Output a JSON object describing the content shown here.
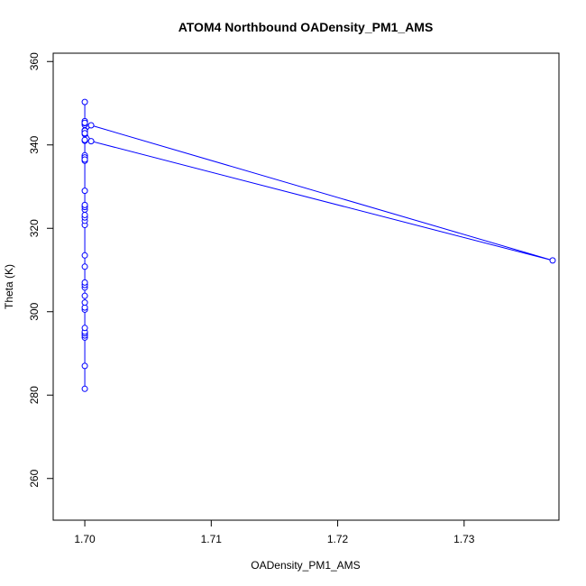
{
  "chart_data": {
    "type": "line",
    "title": "ATOM4 Northbound OADensity_PM1_AMS",
    "xlabel": "OADensity_PM1_AMS",
    "ylabel": "Theta (K)",
    "xlim": [
      1.6975,
      1.7375
    ],
    "ylim": [
      250,
      362
    ],
    "xticks": [
      "1.70",
      "1.71",
      "1.72",
      "1.73"
    ],
    "yticks": [
      "260",
      "280",
      "300",
      "320",
      "340",
      "360"
    ],
    "series_color": "#0000ff",
    "grid": false,
    "series": [
      {
        "x": [
          1.7,
          1.7,
          1.7,
          1.7,
          1.7,
          1.7,
          1.7,
          1.7,
          1.7,
          1.7,
          1.7,
          1.7,
          1.7,
          1.7,
          1.7,
          1.7,
          1.7,
          1.7,
          1.7,
          1.7,
          1.7,
          1.7,
          1.7,
          1.7,
          1.7,
          1.7,
          1.7,
          1.7,
          1.7,
          1.7,
          1.7,
          1.7,
          1.7,
          1.7,
          1.7,
          1.7,
          1.7,
          1.7,
          1.7005,
          1.737,
          1.7005,
          1.7,
          1.7,
          1.7,
          1.7
        ],
        "y": [
          281.5,
          287.0,
          293.8,
          294.3,
          294.8,
          295.2,
          296.1,
          300.5,
          301.0,
          302.2,
          303.8,
          305.8,
          306.4,
          307.0,
          310.8,
          313.5,
          320.8,
          321.8,
          322.6,
          323.2,
          324.5,
          325.1,
          325.6,
          329.0,
          336.2,
          336.6,
          337.2,
          337.5,
          341.0,
          342.6,
          343.0,
          343.5,
          344.8,
          345.2,
          345.7,
          350.3,
          345.3,
          343.4,
          340.9,
          312.3,
          344.7,
          342.8,
          341.2,
          337.0,
          336.5
        ]
      }
    ]
  }
}
